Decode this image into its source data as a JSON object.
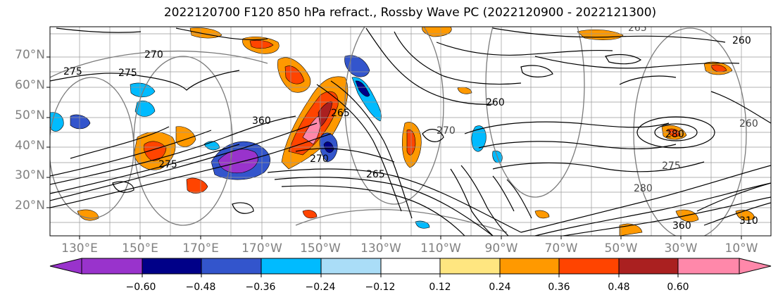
{
  "title": "2022120700 F120 850 hPa refract., Rossby Wave PC (2022120900 - 2022121300)",
  "map": {
    "lat_labels": [
      "70°N",
      "60°N",
      "50°N",
      "40°N",
      "30°N",
      "20°N"
    ],
    "lon_labels": [
      "130°E",
      "150°E",
      "170°E",
      "170°W",
      "150°W",
      "130°W",
      "110°W",
      "90°W",
      "70°W",
      "50°W",
      "30°W",
      "10°W"
    ],
    "contour_labels": [
      "270",
      "275",
      "275",
      "260",
      "265",
      "360",
      "275",
      "270",
      "270",
      "260",
      "265",
      "280",
      "275",
      "280",
      "265",
      "260",
      "360",
      "310"
    ]
  },
  "colorbar": {
    "tick_labels": [
      "−0.60",
      "−0.48",
      "−0.36",
      "−0.24",
      "−0.12",
      "0.12",
      "0.24",
      "0.36",
      "0.48",
      "0.60"
    ],
    "colors": [
      "#9933CC",
      "#000088",
      "#3355CC",
      "#00BBFF",
      "#AADDF7",
      "#FFFFFF",
      "#FFE680",
      "#FF9900",
      "#FF4400",
      "#AA2020",
      "#FF88AA",
      "#FF88AA"
    ]
  }
}
